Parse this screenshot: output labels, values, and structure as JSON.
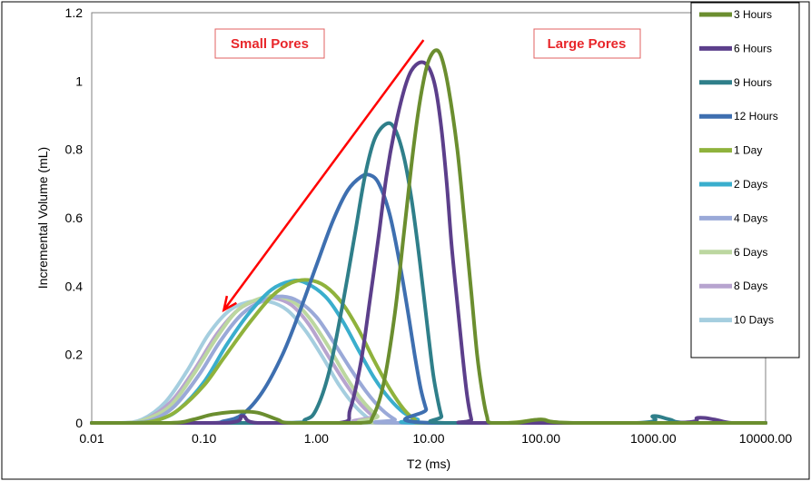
{
  "chart_data": {
    "type": "line",
    "title": "",
    "xlabel": "T2 (ms)",
    "ylabel": "Incremental Volume (mL)",
    "x_scale": "log",
    "xlim": [
      0.01,
      10000
    ],
    "ylim": [
      0,
      1.2
    ],
    "x_ticks": [
      "0.01",
      "0.10",
      "1.00",
      "10.00",
      "100.00",
      "1000.00",
      "10000.00"
    ],
    "y_ticks": [
      "0",
      "0.2",
      "0.4",
      "0.6",
      "0.8",
      "1",
      "1.2"
    ],
    "grid": true,
    "legend_position": "right",
    "annotations": [
      {
        "text": "Small Pores",
        "color": "#e8262a"
      },
      {
        "text": "Large Pores",
        "color": "#e8262a"
      }
    ],
    "arrow": {
      "from": [
        9,
        1.12
      ],
      "to": [
        0.15,
        0.33
      ],
      "color": "#ff0000"
    },
    "series": [
      {
        "name": "3 Hours",
        "color": "#6b8e2f",
        "points": [
          [
            0.01,
            0
          ],
          [
            0.05,
            0
          ],
          [
            0.08,
            0.01
          ],
          [
            0.12,
            0.025
          ],
          [
            0.2,
            0.033
          ],
          [
            0.3,
            0.03
          ],
          [
            0.45,
            0.01
          ],
          [
            0.6,
            0
          ],
          [
            2.5,
            0
          ],
          [
            3.2,
            0.02
          ],
          [
            4,
            0.12
          ],
          [
            5,
            0.32
          ],
          [
            6,
            0.55
          ],
          [
            7,
            0.75
          ],
          [
            8,
            0.9
          ],
          [
            9,
            1
          ],
          [
            10,
            1.06
          ],
          [
            11.5,
            1.09
          ],
          [
            13,
            1.07
          ],
          [
            15,
            0.98
          ],
          [
            18,
            0.8
          ],
          [
            21,
            0.58
          ],
          [
            24,
            0.38
          ],
          [
            27,
            0.2
          ],
          [
            30,
            0.09
          ],
          [
            33,
            0.02
          ],
          [
            36,
            0
          ],
          [
            60,
            0
          ],
          [
            100,
            0.01
          ],
          [
            200,
            0
          ],
          [
            10000,
            0
          ]
        ]
      },
      {
        "name": "6 Hours",
        "color": "#5c3f8b",
        "points": [
          [
            0.01,
            0
          ],
          [
            0.15,
            0
          ],
          [
            0.22,
            0.02
          ],
          [
            0.3,
            0
          ],
          [
            1.6,
            0
          ],
          [
            2,
            0.04
          ],
          [
            2.5,
            0.18
          ],
          [
            3,
            0.36
          ],
          [
            3.6,
            0.55
          ],
          [
            4.2,
            0.72
          ],
          [
            5,
            0.86
          ],
          [
            6,
            0.97
          ],
          [
            7,
            1.03
          ],
          [
            8.5,
            1.055
          ],
          [
            10,
            1.04
          ],
          [
            11.5,
            0.98
          ],
          [
            13,
            0.86
          ],
          [
            14.5,
            0.7
          ],
          [
            16,
            0.52
          ],
          [
            18,
            0.35
          ],
          [
            20,
            0.2
          ],
          [
            22,
            0.08
          ],
          [
            24,
            0.01
          ],
          [
            25,
            0
          ],
          [
            1500,
            0
          ],
          [
            2500,
            0.015
          ],
          [
            3500,
            0.01
          ],
          [
            5000,
            0
          ],
          [
            10000,
            0
          ]
        ]
      },
      {
        "name": "9 Hours",
        "color": "#2f7f8a",
        "points": [
          [
            0.01,
            0
          ],
          [
            0.5,
            0
          ],
          [
            0.8,
            0.01
          ],
          [
            1,
            0.04
          ],
          [
            1.3,
            0.15
          ],
          [
            1.7,
            0.34
          ],
          [
            2.2,
            0.55
          ],
          [
            2.7,
            0.72
          ],
          [
            3.3,
            0.83
          ],
          [
            4.2,
            0.875
          ],
          [
            5,
            0.86
          ],
          [
            6,
            0.78
          ],
          [
            7,
            0.66
          ],
          [
            8,
            0.52
          ],
          [
            9,
            0.38
          ],
          [
            10,
            0.25
          ],
          [
            11,
            0.14
          ],
          [
            12,
            0.07
          ],
          [
            13,
            0.02
          ],
          [
            14,
            0
          ],
          [
            700,
            0
          ],
          [
            1000,
            0.02
          ],
          [
            1400,
            0.01
          ],
          [
            2000,
            0
          ],
          [
            10000,
            0
          ]
        ]
      },
      {
        "name": "12 Hours",
        "color": "#3e6fb0",
        "points": [
          [
            0.01,
            0
          ],
          [
            0.1,
            0
          ],
          [
            0.15,
            0.005
          ],
          [
            0.22,
            0.025
          ],
          [
            0.33,
            0.09
          ],
          [
            0.5,
            0.2
          ],
          [
            0.7,
            0.32
          ],
          [
            1,
            0.46
          ],
          [
            1.4,
            0.59
          ],
          [
            1.9,
            0.68
          ],
          [
            2.5,
            0.72
          ],
          [
            3,
            0.725
          ],
          [
            3.6,
            0.7
          ],
          [
            4.5,
            0.61
          ],
          [
            5.5,
            0.47
          ],
          [
            6.5,
            0.33
          ],
          [
            7.5,
            0.2
          ],
          [
            8.5,
            0.1
          ],
          [
            9.5,
            0.04
          ],
          [
            10.5,
            0
          ],
          [
            10000,
            0
          ]
        ]
      },
      {
        "name": "1 Day",
        "color": "#8fb23c",
        "points": [
          [
            0.01,
            0
          ],
          [
            0.025,
            0
          ],
          [
            0.04,
            0.01
          ],
          [
            0.06,
            0.04
          ],
          [
            0.1,
            0.11
          ],
          [
            0.15,
            0.19
          ],
          [
            0.25,
            0.29
          ],
          [
            0.4,
            0.37
          ],
          [
            0.6,
            0.41
          ],
          [
            0.85,
            0.418
          ],
          [
            1.2,
            0.4
          ],
          [
            1.7,
            0.35
          ],
          [
            2.4,
            0.27
          ],
          [
            3.3,
            0.18
          ],
          [
            4.5,
            0.1
          ],
          [
            6,
            0.04
          ],
          [
            7.5,
            0.01
          ],
          [
            9,
            0
          ],
          [
            50,
            0
          ],
          [
            100,
            0.01
          ],
          [
            200,
            0
          ],
          [
            10000,
            0
          ]
        ]
      },
      {
        "name": "2 Days",
        "color": "#3aaecd",
        "points": [
          [
            0.01,
            0
          ],
          [
            0.025,
            0
          ],
          [
            0.04,
            0.01
          ],
          [
            0.06,
            0.04
          ],
          [
            0.1,
            0.12
          ],
          [
            0.16,
            0.23
          ],
          [
            0.25,
            0.32
          ],
          [
            0.4,
            0.39
          ],
          [
            0.6,
            0.415
          ],
          [
            0.8,
            0.41
          ],
          [
            1.2,
            0.37
          ],
          [
            1.7,
            0.3
          ],
          [
            2.4,
            0.21
          ],
          [
            3.3,
            0.13
          ],
          [
            4.5,
            0.07
          ],
          [
            6,
            0.03
          ],
          [
            8,
            0.01
          ],
          [
            10,
            0
          ],
          [
            10000,
            0
          ]
        ]
      },
      {
        "name": "4 Days",
        "color": "#9aa9d8",
        "points": [
          [
            0.01,
            0
          ],
          [
            0.022,
            0
          ],
          [
            0.035,
            0.01
          ],
          [
            0.055,
            0.05
          ],
          [
            0.09,
            0.14
          ],
          [
            0.14,
            0.24
          ],
          [
            0.22,
            0.32
          ],
          [
            0.35,
            0.36
          ],
          [
            0.5,
            0.37
          ],
          [
            0.7,
            0.355
          ],
          [
            1,
            0.31
          ],
          [
            1.4,
            0.24
          ],
          [
            2,
            0.16
          ],
          [
            2.8,
            0.09
          ],
          [
            3.8,
            0.04
          ],
          [
            5,
            0.01
          ],
          [
            6,
            0
          ],
          [
            10000,
            0
          ]
        ]
      },
      {
        "name": "6 Days",
        "color": "#bcd7a0",
        "points": [
          [
            0.01,
            0
          ],
          [
            0.02,
            0
          ],
          [
            0.03,
            0.01
          ],
          [
            0.05,
            0.05
          ],
          [
            0.08,
            0.14
          ],
          [
            0.13,
            0.25
          ],
          [
            0.2,
            0.33
          ],
          [
            0.32,
            0.365
          ],
          [
            0.45,
            0.37
          ],
          [
            0.65,
            0.35
          ],
          [
            0.9,
            0.3
          ],
          [
            1.3,
            0.22
          ],
          [
            1.8,
            0.14
          ],
          [
            2.5,
            0.07
          ],
          [
            3.5,
            0.02
          ],
          [
            4.5,
            0
          ],
          [
            10000,
            0
          ]
        ]
      },
      {
        "name": "8 Days",
        "color": "#b7a4cf",
        "points": [
          [
            0.01,
            0
          ],
          [
            0.02,
            0
          ],
          [
            0.03,
            0.01
          ],
          [
            0.05,
            0.06
          ],
          [
            0.08,
            0.15
          ],
          [
            0.13,
            0.26
          ],
          [
            0.2,
            0.33
          ],
          [
            0.3,
            0.36
          ],
          [
            0.42,
            0.365
          ],
          [
            0.6,
            0.345
          ],
          [
            0.85,
            0.29
          ],
          [
            1.2,
            0.21
          ],
          [
            1.7,
            0.13
          ],
          [
            2.4,
            0.06
          ],
          [
            3.2,
            0.02
          ],
          [
            4,
            0
          ],
          [
            10000,
            0
          ]
        ]
      },
      {
        "name": "10 Days",
        "color": "#a5cedf",
        "points": [
          [
            0.01,
            0
          ],
          [
            0.018,
            0
          ],
          [
            0.028,
            0.01
          ],
          [
            0.045,
            0.06
          ],
          [
            0.07,
            0.15
          ],
          [
            0.11,
            0.26
          ],
          [
            0.17,
            0.33
          ],
          [
            0.26,
            0.355
          ],
          [
            0.38,
            0.355
          ],
          [
            0.55,
            0.33
          ],
          [
            0.8,
            0.27
          ],
          [
            1.15,
            0.19
          ],
          [
            1.6,
            0.11
          ],
          [
            2.2,
            0.05
          ],
          [
            3,
            0.01
          ],
          [
            3.6,
            0
          ],
          [
            10000,
            0
          ]
        ]
      }
    ]
  }
}
